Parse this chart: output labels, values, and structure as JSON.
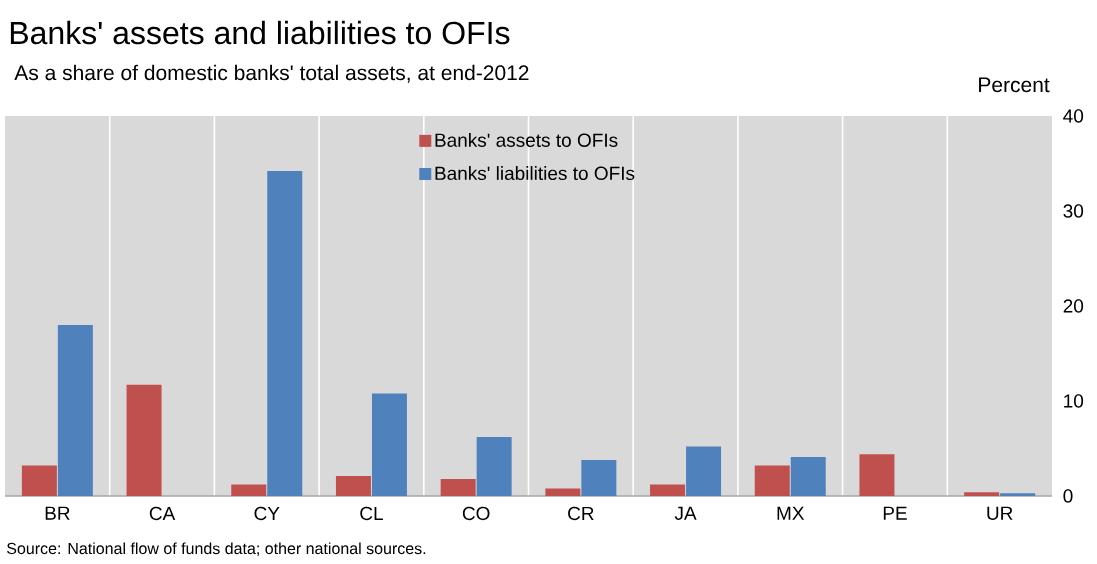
{
  "chart_data": {
    "type": "bar",
    "title": "Banks' assets and liabilities to OFIs",
    "subtitle": "As a share of domestic banks' total assets, at end-2012",
    "ylabel": "Percent",
    "categories": [
      "BR",
      "CA",
      "CY",
      "CL",
      "CO",
      "CR",
      "JA",
      "MX",
      "PE",
      "UR"
    ],
    "series": [
      {
        "name": "Banks' assets to OFIs",
        "color": "#c0504d",
        "values": [
          3.2,
          11.7,
          1.2,
          2.1,
          1.8,
          0.8,
          1.2,
          3.2,
          4.4,
          0.4
        ]
      },
      {
        "name": "Banks' liabilities to OFIs",
        "color": "#4f81bd",
        "values": [
          18.0,
          null,
          34.2,
          10.8,
          6.2,
          3.8,
          5.2,
          4.1,
          null,
          0.3
        ]
      }
    ],
    "ylim": [
      0,
      40
    ],
    "yticks": [
      0,
      10,
      20,
      30,
      40
    ],
    "grid": "x",
    "legend": "top",
    "annotations": [
      "Source: National flow of funds data; other national sources."
    ]
  }
}
